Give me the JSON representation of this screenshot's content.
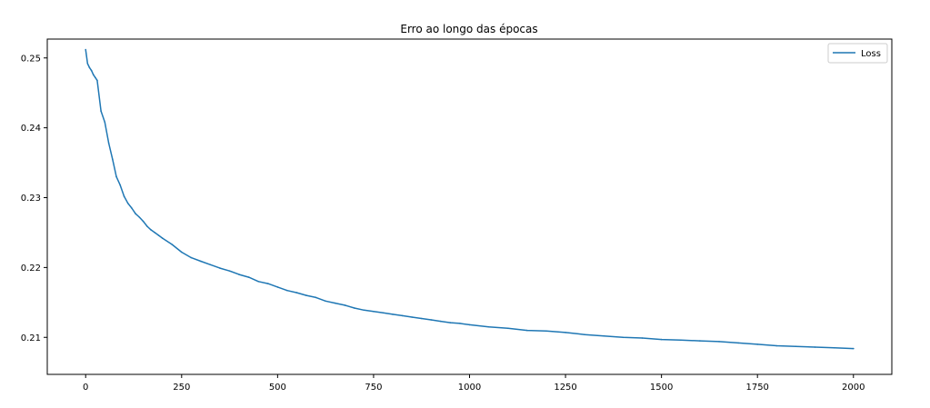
{
  "chart_data": {
    "type": "line",
    "title": "Erro ao longo das épocas",
    "xlabel": "",
    "ylabel": "",
    "xlim": [
      -100,
      2100
    ],
    "ylim": [
      0.2047,
      0.2527
    ],
    "xticks": [
      0,
      250,
      500,
      750,
      1000,
      1250,
      1500,
      1750,
      2000
    ],
    "yticks": [
      0.21,
      0.22,
      0.23,
      0.24,
      0.25
    ],
    "ytick_labels": [
      "0.21",
      "0.22",
      "0.23",
      "0.24",
      "0.25"
    ],
    "legend": {
      "position": "upper right",
      "entries": [
        "Loss"
      ]
    },
    "grid": false,
    "series": [
      {
        "name": "Loss",
        "color": "#1f77b4",
        "x": [
          0,
          5,
          10,
          15,
          20,
          25,
          30,
          40,
          50,
          60,
          70,
          80,
          90,
          100,
          110,
          120,
          130,
          140,
          150,
          160,
          170,
          180,
          190,
          200,
          225,
          250,
          275,
          300,
          325,
          350,
          375,
          400,
          425,
          450,
          475,
          500,
          525,
          550,
          575,
          600,
          625,
          650,
          675,
          700,
          725,
          750,
          775,
          800,
          825,
          850,
          875,
          900,
          925,
          950,
          975,
          1000,
          1050,
          1100,
          1150,
          1200,
          1250,
          1300,
          1350,
          1400,
          1450,
          1500,
          1550,
          1600,
          1650,
          1700,
          1750,
          1800,
          1850,
          1900,
          1950,
          2000
        ],
        "values": [
          0.2512,
          0.2492,
          0.2486,
          0.2482,
          0.2476,
          0.2472,
          0.2468,
          0.2424,
          0.2408,
          0.2378,
          0.2355,
          0.233,
          0.2318,
          0.2302,
          0.2292,
          0.2285,
          0.2277,
          0.2272,
          0.2266,
          0.2259,
          0.2254,
          0.225,
          0.2246,
          0.2242,
          0.2233,
          0.2222,
          0.2214,
          0.2209,
          0.2204,
          0.2199,
          0.2195,
          0.219,
          0.2186,
          0.218,
          0.2177,
          0.2172,
          0.2167,
          0.2164,
          0.216,
          0.2157,
          0.2152,
          0.2149,
          0.2146,
          0.2142,
          0.2139,
          0.2137,
          0.2135,
          0.2133,
          0.2131,
          0.2129,
          0.2127,
          0.2125,
          0.2123,
          0.2121,
          0.212,
          0.2118,
          0.2115,
          0.2113,
          0.211,
          0.2109,
          0.2107,
          0.2104,
          0.2102,
          0.21,
          0.2099,
          0.2097,
          0.2096,
          0.2095,
          0.2094,
          0.2092,
          0.209,
          0.2088,
          0.2087,
          0.2086,
          0.2085,
          0.2084
        ]
      }
    ]
  }
}
